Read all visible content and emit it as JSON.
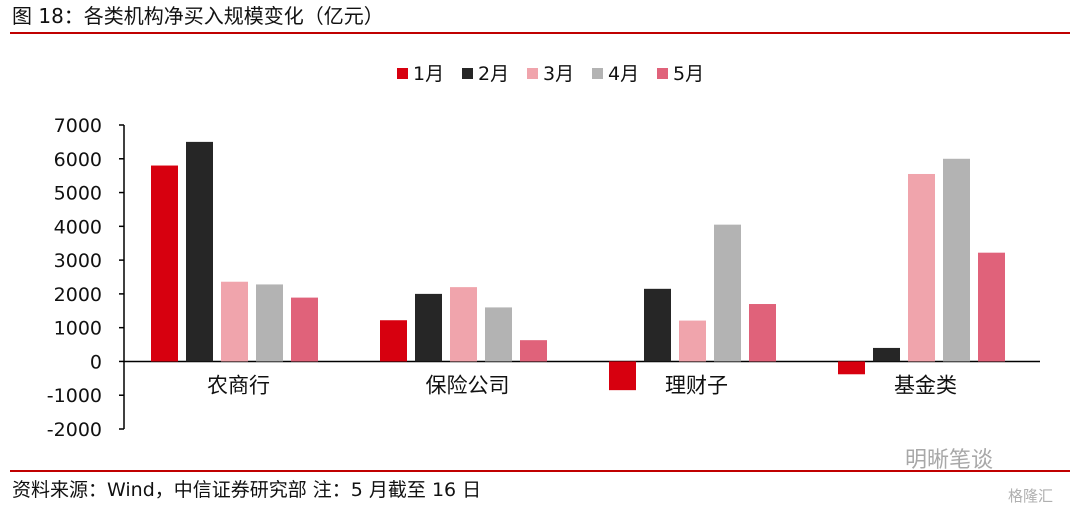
{
  "header": {
    "title": "图 18：各类机构净买入规模变化（亿元）"
  },
  "footer": {
    "source": "资料来源：Wind，中信证券研究部   注：5 月截至 16 日"
  },
  "watermark": {
    "text": "明晰笔谈",
    "sub": "格隆汇"
  },
  "colors": {
    "rule": "#c00000",
    "series": [
      "#d7000f",
      "#262626",
      "#f0a4ac",
      "#b3b3b3",
      "#e0627a"
    ]
  },
  "chart_data": {
    "type": "bar",
    "title": "",
    "xlabel": "",
    "ylabel": "",
    "categories": [
      "农商行",
      "保险公司",
      "理财子",
      "基金类"
    ],
    "series": [
      {
        "name": "1月",
        "values": [
          5800,
          1220,
          -850,
          -380
        ]
      },
      {
        "name": "2月",
        "values": [
          6500,
          2000,
          2150,
          400
        ]
      },
      {
        "name": "3月",
        "values": [
          2360,
          2200,
          1210,
          5550
        ]
      },
      {
        "name": "4月",
        "values": [
          2280,
          1600,
          4050,
          6000
        ]
      },
      {
        "name": "5月",
        "values": [
          1890,
          630,
          1700,
          3220
        ]
      }
    ],
    "ylim": [
      -2000,
      7000
    ],
    "yticks": [
      -2000,
      -1000,
      0,
      1000,
      2000,
      3000,
      4000,
      5000,
      6000,
      7000
    ],
    "legend_position": "top-center",
    "grid": false
  }
}
